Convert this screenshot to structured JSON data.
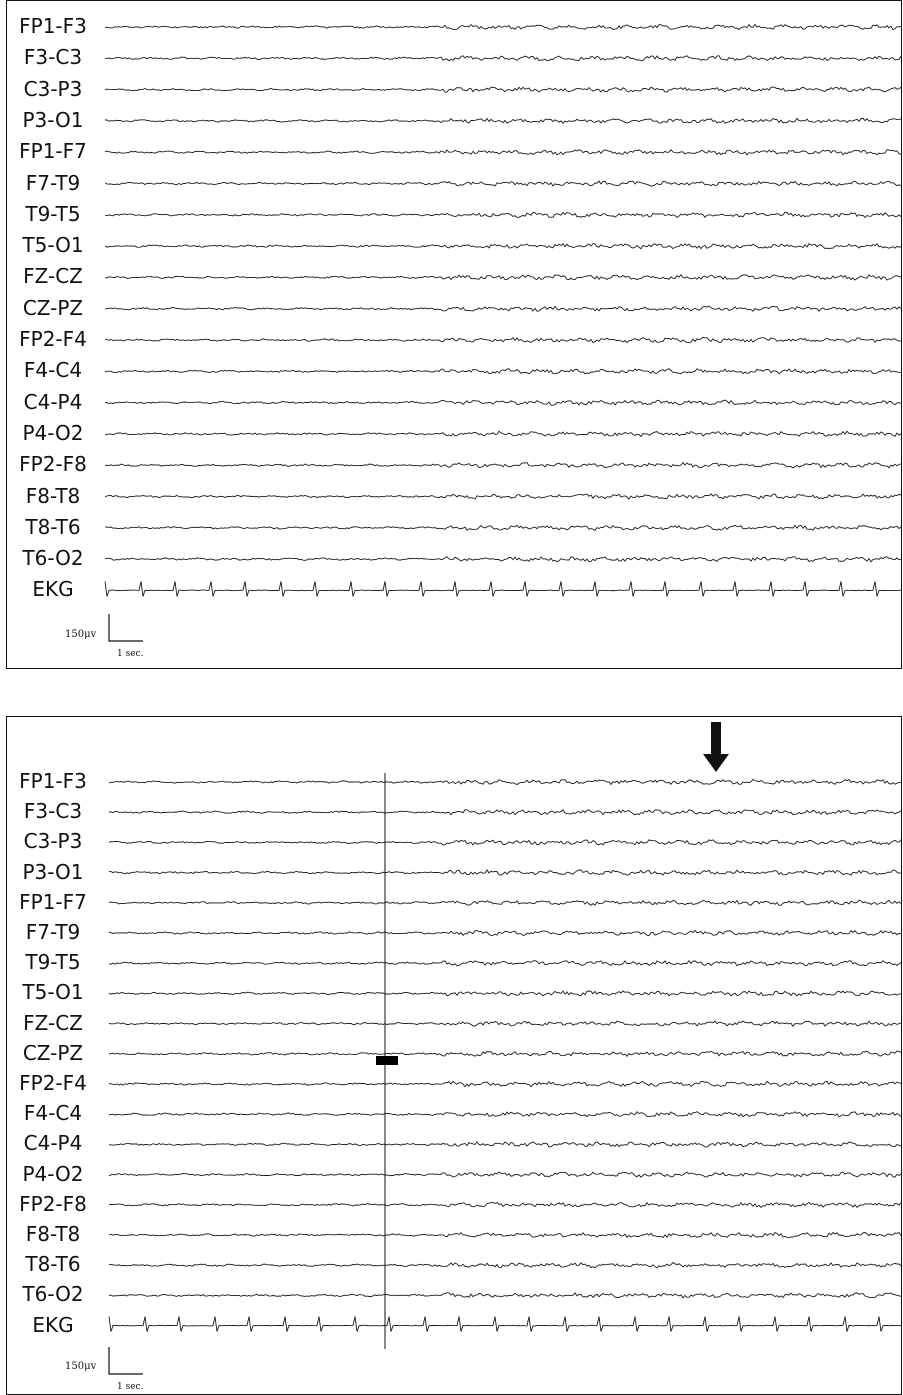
{
  "panels": [
    {
      "channels": [
        "FP1-F3",
        "F3-C3",
        "C3-P3",
        "P3-O1",
        "FP1-F7",
        "F7-T9",
        "T9-T5",
        "T5-O1",
        "FZ-CZ",
        "CZ-PZ",
        "FP2-F4",
        "F4-C4",
        "C4-P4",
        "P4-O2",
        "FP2-F8",
        "F8-T8",
        "T8-T6",
        "T6-O2",
        "EKG"
      ],
      "calibration": {
        "amplitude": "150μv",
        "time": "1 sec."
      }
    },
    {
      "channels": [
        "FP1-F3",
        "F3-C3",
        "C3-P3",
        "P3-O1",
        "FP1-F7",
        "F7-T9",
        "T9-T5",
        "T5-O1",
        "FZ-CZ",
        "CZ-PZ",
        "FP2-F4",
        "F4-C4",
        "C4-P4",
        "P4-O2",
        "FP2-F8",
        "F8-T8",
        "T8-T6",
        "T6-O2",
        "EKG"
      ],
      "calibration": {
        "amplitude": "150μv",
        "time": "1 sec."
      }
    }
  ],
  "colors": {
    "trace": "#1a1a1a",
    "border": "#111111"
  },
  "icons": {
    "marker": "down-arrow-icon"
  }
}
